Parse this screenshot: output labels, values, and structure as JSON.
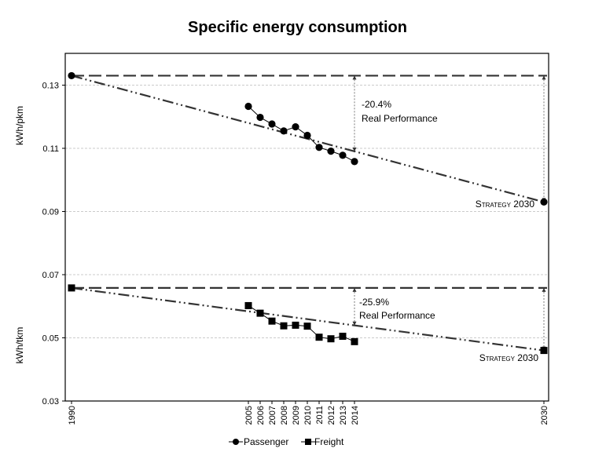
{
  "chart_data": {
    "type": "line",
    "title": "Specific energy consumption",
    "xlabel": "",
    "ylabel": "",
    "x_ticks": [
      1990,
      2005,
      2006,
      2007,
      2008,
      2009,
      2010,
      2011,
      2012,
      2013,
      2014,
      2030
    ],
    "y_ticks": [
      "0.03",
      "0.05",
      "0.07",
      "0.09",
      "0.11",
      "0.13"
    ],
    "ylim": [
      0.03,
      0.14
    ],
    "grid": true,
    "legend_position": "bottom",
    "panels": [
      {
        "ylabel": "kWh/pkm",
        "series_name": "Passenger",
        "marker": "circle",
        "points": [
          {
            "x": 1990,
            "y": 0.133
          },
          {
            "x": 2005,
            "y": 0.1233
          },
          {
            "x": 2006,
            "y": 0.1198
          },
          {
            "x": 2007,
            "y": 0.1177
          },
          {
            "x": 2008,
            "y": 0.1155
          },
          {
            "x": 2009,
            "y": 0.1168
          },
          {
            "x": 2010,
            "y": 0.1141
          },
          {
            "x": 2011,
            "y": 0.1103
          },
          {
            "x": 2012,
            "y": 0.1091
          },
          {
            "x": 2013,
            "y": 0.1078
          },
          {
            "x": 2014,
            "y": 0.1058
          },
          {
            "x": 2030,
            "y": 0.093
          }
        ],
        "baseline": 0.133,
        "target": 0.093,
        "reduction_label": "-20.4%",
        "performance_label": "Real Performance",
        "target_label": "Strategy 2030"
      },
      {
        "ylabel": "kWh/tkm",
        "series_name": "Freight",
        "marker": "square",
        "points": [
          {
            "x": 1990,
            "y": 0.0658
          },
          {
            "x": 2005,
            "y": 0.0602
          },
          {
            "x": 2006,
            "y": 0.0578
          },
          {
            "x": 2007,
            "y": 0.0553
          },
          {
            "x": 2008,
            "y": 0.0538
          },
          {
            "x": 2009,
            "y": 0.054
          },
          {
            "x": 2010,
            "y": 0.0537
          },
          {
            "x": 2011,
            "y": 0.0502
          },
          {
            "x": 2012,
            "y": 0.0497
          },
          {
            "x": 2013,
            "y": 0.0505
          },
          {
            "x": 2014,
            "y": 0.0488
          },
          {
            "x": 2030,
            "y": 0.046
          }
        ],
        "baseline": 0.0658,
        "target": 0.046,
        "reduction_label": "-25.9%",
        "performance_label": "Real Performance",
        "target_label": "Strategy 2030"
      }
    ],
    "legend": [
      "Passenger",
      "Freight"
    ]
  }
}
